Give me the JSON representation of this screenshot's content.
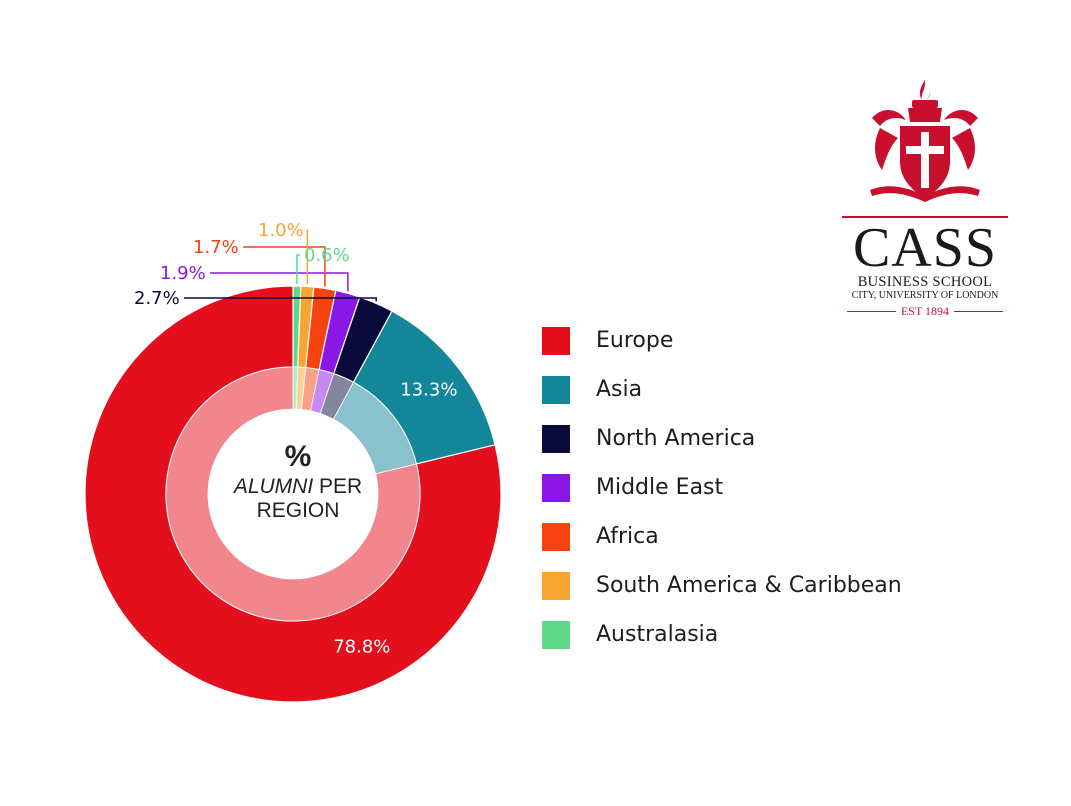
{
  "chart_data": {
    "type": "pie",
    "categories": [
      "Europe",
      "Asia",
      "North America",
      "Middle East",
      "Africa",
      "South America & Caribbean",
      "Australasia"
    ],
    "values": [
      78.8,
      13.3,
      2.7,
      1.9,
      1.7,
      1.0,
      0.6
    ],
    "value_labels": [
      "78.8%",
      "13.3%",
      "2.7%",
      "1.9%",
      "1.7%",
      "1.0%",
      "0.6%"
    ],
    "colors": [
      "#e30f1c",
      "#13869a",
      "#0b0b3b",
      "#8a17e6",
      "#f5420f",
      "#f7a531",
      "#5ed98a"
    ],
    "center_label": {
      "symbol": "%",
      "word_italic": "ALUMNI",
      "word_rest": " PER",
      "line2": "REGION"
    },
    "legend_position": "right"
  },
  "logo": {
    "name": "CASS",
    "line1": "BUSINESS SCHOOL",
    "line2": "CITY, UNIVERSITY OF LONDON",
    "est": "EST 1894",
    "color": "#c8102e"
  }
}
